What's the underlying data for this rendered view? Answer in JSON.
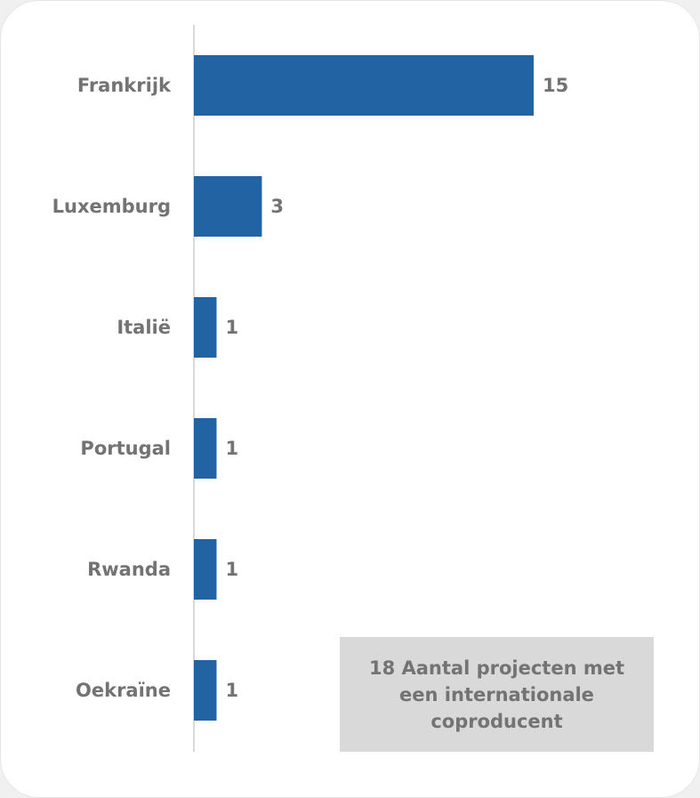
{
  "chart_data": {
    "type": "bar",
    "orientation": "horizontal",
    "categories": [
      "Frankrijk",
      "Luxemburg",
      "Italië",
      "Portugal",
      "Rwanda",
      "Oekraïne"
    ],
    "values": [
      15,
      3,
      1,
      1,
      1,
      1
    ],
    "color": "#2163a3",
    "annotation": "18 Aantal projecten met een internationale coproducent"
  }
}
